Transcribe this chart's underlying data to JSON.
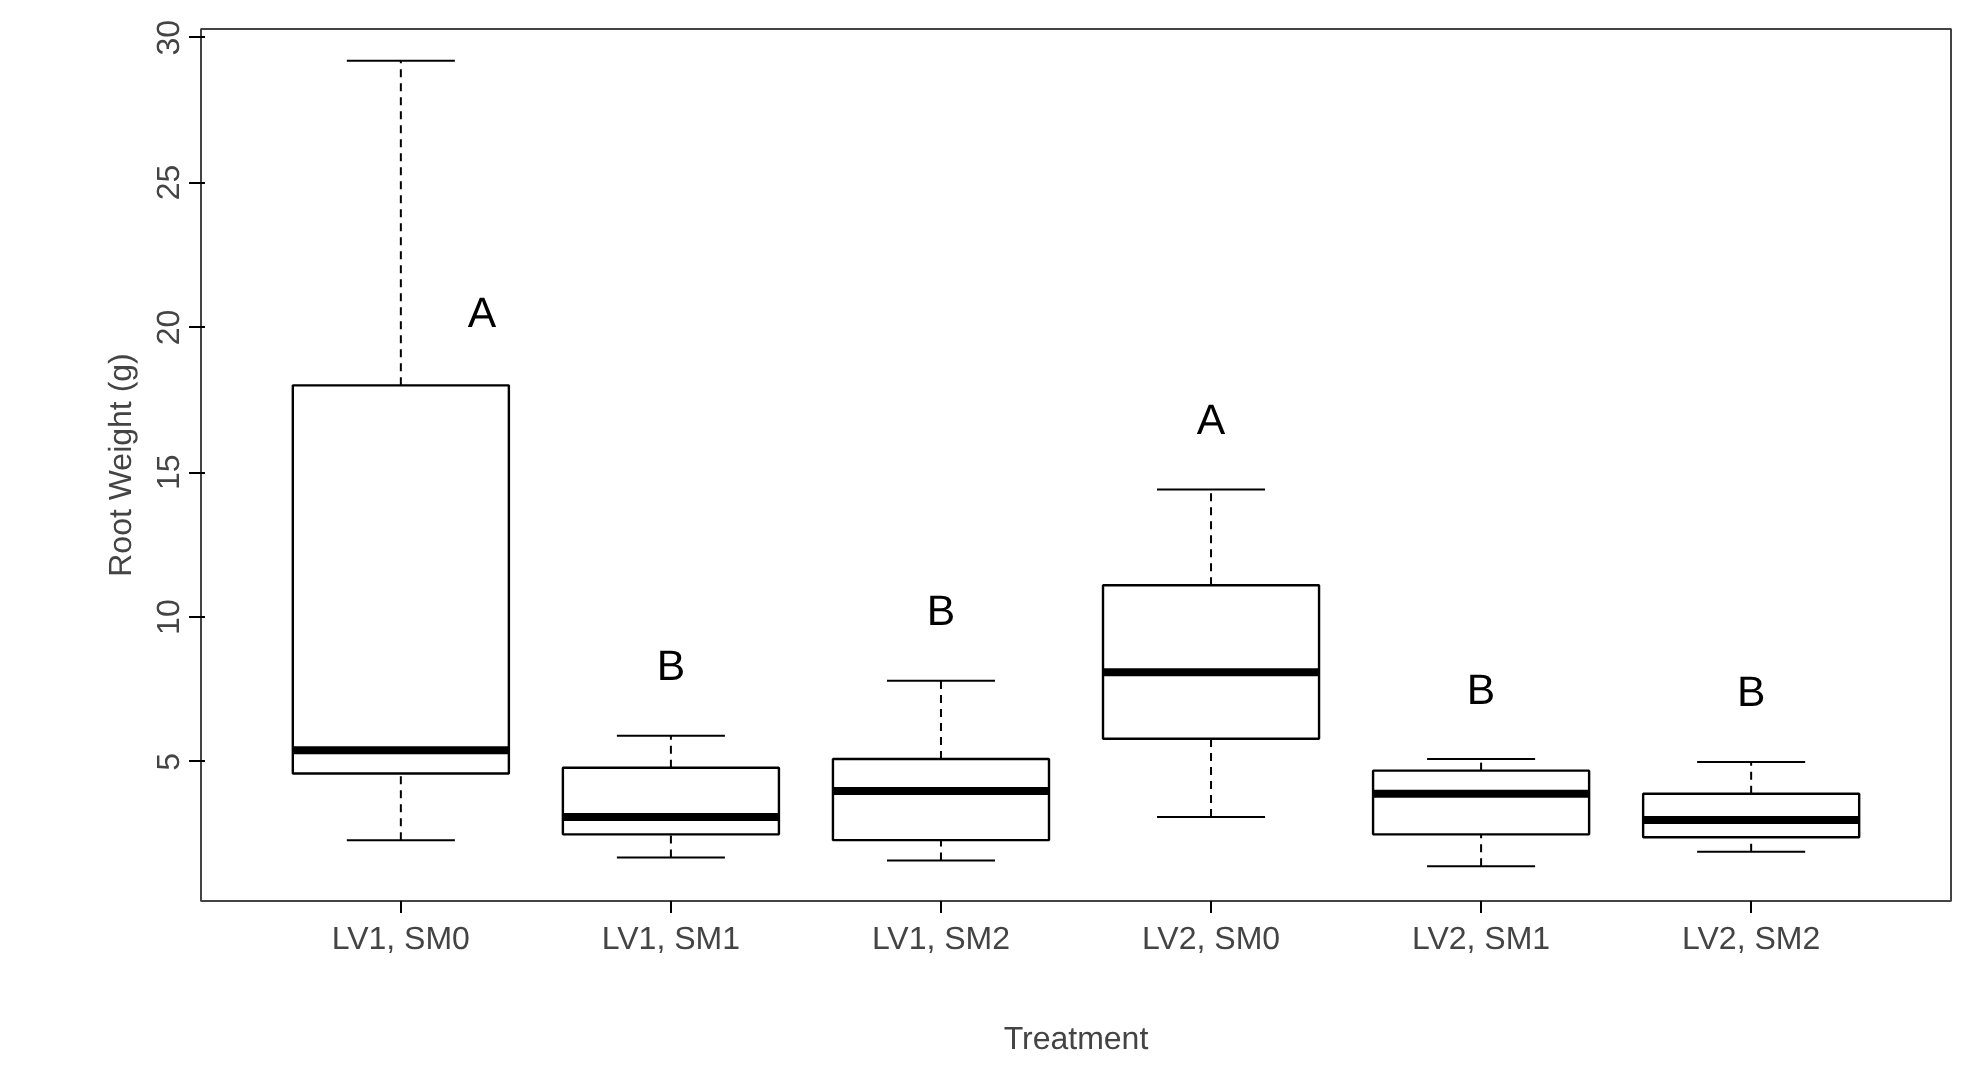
{
  "chart_data": {
    "type": "box",
    "xlabel": "Treatment",
    "ylabel": "Root Weight (g)",
    "categories": [
      "LV1, SM0",
      "LV1, SM1",
      "LV1, SM2",
      "LV2, SM0",
      "LV2, SM1",
      "LV2, SM2"
    ],
    "boxes": [
      {
        "low": 2.3,
        "q1": 4.6,
        "median": 5.4,
        "q3": 18.0,
        "high": 29.2
      },
      {
        "low": 1.7,
        "q1": 2.5,
        "median": 3.1,
        "q3": 4.8,
        "high": 5.9
      },
      {
        "low": 1.6,
        "q1": 2.3,
        "median": 4.0,
        "q3": 5.1,
        "high": 7.8
      },
      {
        "low": 3.1,
        "q1": 5.8,
        "median": 8.1,
        "q3": 11.1,
        "high": 14.4
      },
      {
        "low": 1.4,
        "q1": 2.5,
        "median": 3.9,
        "q3": 4.7,
        "high": 5.1
      },
      {
        "low": 1.9,
        "q1": 2.4,
        "median": 3.0,
        "q3": 3.9,
        "high": 5.0
      }
    ],
    "ylim": [
      0.2,
      30.3
    ],
    "yticks": [
      5,
      10,
      15,
      20,
      25,
      30
    ],
    "annotations": [
      "A",
      "B",
      "B",
      "A",
      "B",
      "B"
    ]
  }
}
